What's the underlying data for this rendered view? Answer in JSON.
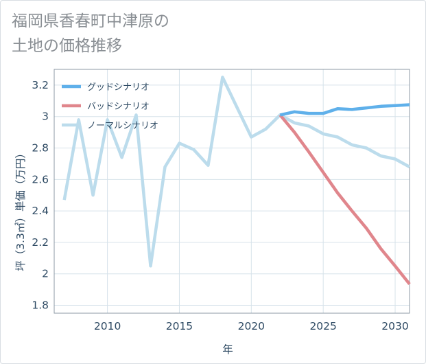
{
  "title": "福岡県香春町中津原の\n土地の価格推移",
  "chart_data": {
    "type": "line",
    "title": "福岡県香春町中津原の土地の価格推移",
    "xlabel": "年",
    "ylabel": "坪（3.3㎡）単価（万円）",
    "xlim": [
      2006.3,
      2031
    ],
    "ylim": [
      1.75,
      3.3
    ],
    "xticks": [
      2010,
      2015,
      2020,
      2025,
      2030
    ],
    "yticks": [
      1.8,
      2,
      2.2,
      2.4,
      2.6,
      2.8,
      3,
      3.2
    ],
    "legend": "top-left",
    "grid": true,
    "series": [
      {
        "name": "グッドシナリオ",
        "color": "#5fb0ea",
        "x": [
          2022,
          2023,
          2024,
          2025,
          2026,
          2027,
          2028,
          2029,
          2030,
          2031
        ],
        "values": [
          3.01,
          3.03,
          3.02,
          3.02,
          3.05,
          3.045,
          3.055,
          3.065,
          3.07,
          3.075
        ]
      },
      {
        "name": "バッドシナリオ",
        "color": "#e0868c",
        "x": [
          2022,
          2023,
          2024,
          2025,
          2026,
          2027,
          2028,
          2029,
          2030,
          2031
        ],
        "values": [
          3.01,
          2.9,
          2.775,
          2.645,
          2.515,
          2.4,
          2.29,
          2.16,
          2.05,
          1.935
        ]
      },
      {
        "name": "ノーマルシナリオ",
        "color": "#bcdcec",
        "x": [
          2007,
          2008,
          2009,
          2010,
          2011,
          2012,
          2013,
          2014,
          2015,
          2016,
          2017,
          2018,
          2019,
          2020,
          2021,
          2022,
          2023,
          2024,
          2025,
          2026,
          2027,
          2028,
          2029,
          2030,
          2031
        ],
        "values": [
          2.47,
          2.98,
          2.5,
          2.98,
          2.74,
          3.01,
          2.05,
          2.68,
          2.83,
          2.79,
          2.69,
          3.25,
          3.06,
          2.87,
          2.92,
          3.01,
          2.96,
          2.94,
          2.89,
          2.87,
          2.82,
          2.8,
          2.75,
          2.73,
          2.68
        ]
      }
    ]
  }
}
